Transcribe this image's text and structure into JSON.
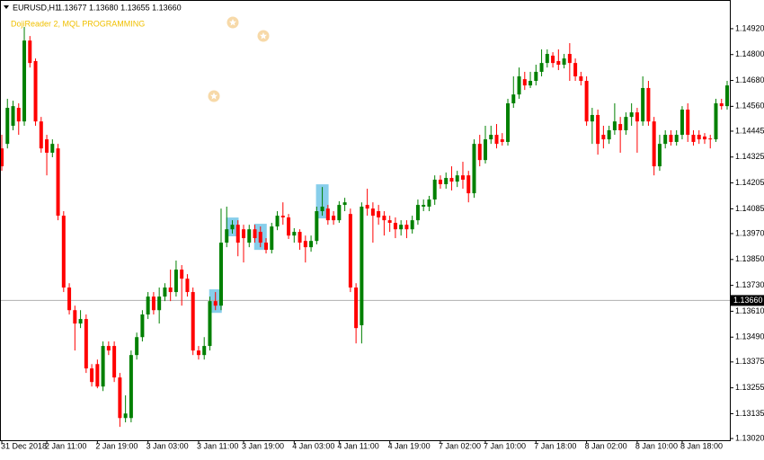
{
  "header": {
    "symbol": "EURUSD,H1",
    "quote": "1.13677 1.13680 1.13655 1.13660",
    "indicator": "DojiReader 2, MQL PROGRAMMING"
  },
  "chart_data": {
    "type": "candlestick",
    "up_color": "#008000",
    "down_color": "#ff0000",
    "grid": false,
    "ylim": [
      1.13012,
      1.15053
    ],
    "yticks": [
      {
        "value": 1.1492,
        "label": "1.14920"
      },
      {
        "value": 1.148,
        "label": "1.14800"
      },
      {
        "value": 1.1468,
        "label": "1.14680"
      },
      {
        "value": 1.1456,
        "label": "1.14560"
      },
      1.14445,
      1.14325,
      1.14205,
      1.14085,
      {
        "value": 1.1397,
        "label": "1.13970"
      },
      {
        "value": 1.1385,
        "label": "1.13850"
      },
      {
        "value": 1.1373,
        "label": "1.13730"
      },
      {
        "value": 1.1361,
        "label": "1.13610"
      },
      {
        "value": 1.1349,
        "label": "1.13490"
      },
      1.13375,
      1.13255,
      1.13135,
      {
        "value": 1.1302,
        "label": "1.13020"
      }
    ],
    "price_line": {
      "value": 1.1366,
      "label": "1.13660"
    },
    "categories": [
      "31 Dec 2018",
      null,
      null,
      null,
      null,
      null,
      null,
      null,
      "2 Jan 11:00",
      null,
      null,
      null,
      null,
      null,
      null,
      null,
      null,
      "2 Jan 19:00",
      null,
      null,
      null,
      null,
      null,
      null,
      null,
      null,
      "3 Jan 03:00",
      null,
      null,
      null,
      null,
      null,
      null,
      null,
      null,
      "3 Jan 11:00",
      null,
      null,
      null,
      null,
      null,
      null,
      null,
      "3 Jan 19:00",
      null,
      null,
      null,
      null,
      null,
      null,
      null,
      null,
      "4 Jan 03:00",
      null,
      null,
      null,
      null,
      null,
      null,
      null,
      "4 Jan 11:00",
      null,
      null,
      null,
      null,
      null,
      null,
      null,
      null,
      "4 Jan 19:00",
      null,
      null,
      null,
      null,
      null,
      null,
      null,
      null,
      "7 Jan 02:00",
      null,
      null,
      null,
      null,
      null,
      null,
      null,
      "7 Jan 10:00",
      null,
      null,
      null,
      null,
      null,
      null,
      null,
      null,
      "7 Jan 18:00",
      null,
      null,
      null,
      null,
      null,
      null,
      null,
      null,
      "8 Jan 02:00",
      null,
      null,
      null,
      null,
      null,
      null,
      null,
      null,
      "8 Jan 10:00",
      null,
      null,
      null,
      null,
      null,
      null,
      null,
      "8 Jan 18:00",
      null,
      null,
      null,
      null,
      null,
      null,
      null,
      null
    ],
    "open": [
      1.14365,
      1.14386,
      1.1447,
      1.14553,
      1.1449,
      1.14865,
      1.1477,
      1.1449,
      1.14407,
      1.14345,
      1.14365,
      1.14053,
      1.1372,
      1.13615,
      1.13553,
      1.13574,
      1.13345,
      1.13365,
      1.13261,
      1.13449,
      1.13449,
      1.13303,
      1.13115,
      1.13115,
      1.13407,
      1.1349,
      1.13595,
      1.13678,
      1.13615,
      1.13678,
      1.1372,
      1.13699,
      1.13803,
      1.13761,
      1.13699,
      1.13428,
      1.13407,
      1.13449,
      1.13657,
      1.13636,
      1.13928,
      1.1399,
      1.14011,
      1.1399,
      1.13928,
      1.1399,
      1.13978,
      1.13928,
      1.13895,
      1.14003,
      1.14053,
      1.14045,
      1.13961,
      1.13978,
      1.13936,
      1.13907,
      1.13936,
      1.14074,
      1.14086,
      1.14053,
      1.14032,
      1.14103,
      1.14061,
      1.1372,
      1.13545,
      1.14103,
      1.14086,
      1.14074,
      1.14053,
      1.14032,
      1.1402,
      1.1399,
      1.14011,
      1.1399,
      1.14032,
      1.14095,
      1.14095,
      1.14128,
      1.1422,
      1.14199,
      1.14228,
      1.14211,
      1.1424,
      1.1424,
      1.14157,
      1.14386,
      1.14311,
      1.14407,
      1.14428,
      1.14407,
      1.14395,
      1.14574,
      1.14615,
      1.14686,
      1.14657,
      1.14678,
      1.1472,
      1.14761,
      1.14795,
      1.1477,
      1.14753,
      1.14803,
      1.14761,
      1.14699,
      1.14678,
      1.1449,
      1.1452,
      1.14428,
      1.14407,
      1.14449,
      1.14478,
      1.14449,
      1.14511,
      1.14532,
      1.1449,
      1.14645,
      1.1449,
      1.14282,
      1.14386,
      1.14428,
      1.14395,
      1.14428,
      1.14545,
      1.14428,
      1.14428,
      1.1442,
      1.14411,
      1.14407,
      1.14574,
      1.14561
    ],
    "high": [
      1.14428,
      1.14595,
      1.14586,
      1.14574,
      1.14928,
      1.14886,
      1.14782,
      1.14511,
      1.14428,
      1.14407,
      1.14386,
      1.14074,
      1.1374,
      1.13636,
      1.13615,
      1.13595,
      1.13365,
      1.13386,
      1.1347,
      1.1347,
      1.1347,
      1.13324,
      1.1322,
      1.13428,
      1.13511,
      1.13615,
      1.13699,
      1.13699,
      1.1372,
      1.1374,
      1.13803,
      1.13845,
      1.13824,
      1.13782,
      1.1372,
      1.13449,
      1.1349,
      1.13678,
      1.13699,
      1.14086,
      1.14095,
      1.14032,
      1.14032,
      1.14011,
      1.14011,
      1.14011,
      1.14003,
      1.13949,
      1.1402,
      1.14074,
      1.14115,
      1.14061,
      1.13995,
      1.1399,
      1.13961,
      1.13961,
      1.14095,
      1.14186,
      1.14103,
      1.14074,
      1.1412,
      1.14136,
      1.14086,
      1.1374,
      1.14115,
      1.14178,
      1.14115,
      1.14103,
      1.14074,
      1.14053,
      1.14045,
      1.14032,
      1.14032,
      1.14053,
      1.14128,
      1.14128,
      1.14145,
      1.1424,
      1.1424,
      1.14253,
      1.14282,
      1.14261,
      1.14303,
      1.14261,
      1.14407,
      1.14428,
      1.1447,
      1.1447,
      1.14478,
      1.14436,
      1.14595,
      1.14699,
      1.1474,
      1.1472,
      1.1472,
      1.14753,
      1.14824,
      1.14824,
      1.14811,
      1.14824,
      1.14803,
      1.14853,
      1.14782,
      1.1472,
      1.14699,
      1.14553,
      1.14545,
      1.1447,
      1.1447,
      1.14574,
      1.14511,
      1.14532,
      1.14574,
      1.14553,
      1.14699,
      1.14678,
      1.14511,
      1.14428,
      1.14449,
      1.14449,
      1.14449,
      1.14561,
      1.14574,
      1.14449,
      1.14449,
      1.14436,
      1.14428,
      1.14595,
      1.14595,
      1.14678
    ],
    "low": [
      1.14261,
      1.14365,
      1.14449,
      1.14428,
      1.1447,
      1.1474,
      1.1447,
      1.14345,
      1.1424,
      1.14324,
      1.14032,
      1.13699,
      1.13595,
      1.13428,
      1.13532,
      1.13324,
      1.13261,
      1.13253,
      1.1324,
      1.13407,
      1.13282,
      1.13074,
      1.13095,
      1.13095,
      1.13386,
      1.1347,
      1.13574,
      1.13595,
      1.13553,
      1.13657,
      1.13657,
      1.13678,
      1.13636,
      1.13678,
      1.13407,
      1.13386,
      1.13386,
      1.13428,
      1.13615,
      1.13615,
      1.13907,
      1.1397,
      1.13865,
      1.13836,
      1.13907,
      1.13928,
      1.13907,
      1.13878,
      1.13878,
      1.13986,
      1.14011,
      1.13945,
      1.13928,
      1.13895,
      1.13836,
      1.13886,
      1.1392,
      1.14053,
      1.14011,
      1.14011,
      1.1402,
      1.14074,
      1.13699,
      1.13461,
      1.13461,
      1.14053,
      1.13928,
      1.14011,
      1.13961,
      1.13978,
      1.13949,
      1.13961,
      1.13949,
      1.1397,
      1.14011,
      1.14074,
      1.14074,
      1.14103,
      1.14178,
      1.14178,
      1.1417,
      1.14186,
      1.14178,
      1.14115,
      1.14136,
      1.14282,
      1.14295,
      1.14386,
      1.14365,
      1.14378,
      1.14378,
      1.14553,
      1.14595,
      1.14636,
      1.14645,
      1.14657,
      1.14699,
      1.1474,
      1.1474,
      1.14728,
      1.14736,
      1.14678,
      1.14678,
      1.14657,
      1.1447,
      1.14386,
      1.14336,
      1.14365,
      1.14386,
      1.14428,
      1.14345,
      1.14428,
      1.1447,
      1.14345,
      1.1447,
      1.1447,
      1.1424,
      1.14261,
      1.14365,
      1.14378,
      1.14378,
      1.14407,
      1.14395,
      1.14378,
      1.14386,
      1.14386,
      1.14365,
      1.14395,
      1.14545,
      1.14545
    ],
    "close": [
      1.14282,
      1.14553,
      1.14561,
      1.1449,
      1.14865,
      1.14761,
      1.1449,
      1.14365,
      1.14345,
      1.14386,
      1.14053,
      1.1372,
      1.13615,
      1.13553,
      1.13574,
      1.13345,
      1.13282,
      1.13261,
      1.13449,
      1.13428,
      1.13303,
      1.13115,
      1.13136,
      1.13407,
      1.1349,
      1.13595,
      1.13678,
      1.13615,
      1.13678,
      1.1372,
      1.13699,
      1.13803,
      1.13761,
      1.13699,
      1.13428,
      1.13407,
      1.13449,
      1.13657,
      1.13636,
      1.13928,
      1.1399,
      1.14011,
      1.13928,
      1.13949,
      1.1399,
      1.13949,
      1.13928,
      1.13895,
      1.14003,
      1.14053,
      1.14045,
      1.13961,
      1.13978,
      1.13928,
      1.13907,
      1.13936,
      1.14074,
      1.14095,
      1.14032,
      1.14032,
      1.14103,
      1.14115,
      1.1372,
      1.13532,
      1.14095,
      1.14086,
      1.14053,
      1.14045,
      1.14032,
      1.1402,
      1.1399,
      1.14011,
      1.1399,
      1.14032,
      1.14103,
      1.14103,
      1.14128,
      1.1422,
      1.14199,
      1.14228,
      1.14211,
      1.1424,
      1.1422,
      1.14157,
      1.14386,
      1.14311,
      1.14407,
      1.14428,
      1.14386,
      1.14395,
      1.14574,
      1.14615,
      1.14699,
      1.14657,
      1.14678,
      1.1472,
      1.14761,
      1.14803,
      1.14761,
      1.14753,
      1.14782,
      1.14761,
      1.14699,
      1.14678,
      1.1449,
      1.1452,
      1.14386,
      1.14407,
      1.14449,
      1.1449,
      1.14449,
      1.14511,
      1.14532,
      1.1449,
      1.14645,
      1.1449,
      1.14282,
      1.14386,
      1.14428,
      1.14395,
      1.14428,
      1.14545,
      1.14428,
      1.14395,
      1.14407,
      1.14407,
      1.14407,
      1.14574,
      1.14561,
      1.14657
    ]
  }
}
